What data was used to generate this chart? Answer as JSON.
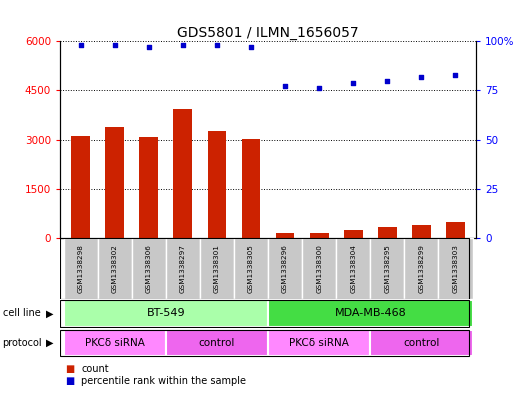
{
  "title": "GDS5801 / ILMN_1656057",
  "samples": [
    "GSM1338298",
    "GSM1338302",
    "GSM1338306",
    "GSM1338297",
    "GSM1338301",
    "GSM1338305",
    "GSM1338296",
    "GSM1338300",
    "GSM1338304",
    "GSM1338295",
    "GSM1338299",
    "GSM1338303"
  ],
  "counts": [
    3100,
    3380,
    3080,
    3920,
    3270,
    3020,
    160,
    155,
    230,
    330,
    390,
    470
  ],
  "percentiles": [
    98,
    98,
    97,
    98,
    98,
    97,
    77,
    76,
    79,
    80,
    82,
    83
  ],
  "cell_lines": [
    {
      "label": "BT-549",
      "start": 0,
      "end": 6,
      "color": "#AAFFAA"
    },
    {
      "label": "MDA-MB-468",
      "start": 6,
      "end": 12,
      "color": "#44DD44"
    }
  ],
  "protocols": [
    {
      "label": "PKCδ siRNA",
      "start": 0,
      "end": 3,
      "color": "#FF88FF"
    },
    {
      "label": "control",
      "start": 3,
      "end": 6,
      "color": "#EE66EE"
    },
    {
      "label": "PKCδ siRNA",
      "start": 6,
      "end": 9,
      "color": "#FF88FF"
    },
    {
      "label": "control",
      "start": 9,
      "end": 12,
      "color": "#EE66EE"
    }
  ],
  "bar_color": "#CC2200",
  "dot_color": "#0000CC",
  "ylim_left": [
    0,
    6000
  ],
  "ylim_right": [
    0,
    100
  ],
  "yticks_left": [
    0,
    1500,
    3000,
    4500,
    6000
  ],
  "yticks_right": [
    0,
    25,
    50,
    75,
    100
  ],
  "sample_bg_color": "#C8C8C8",
  "title_fontsize": 10,
  "bar_width": 0.55
}
